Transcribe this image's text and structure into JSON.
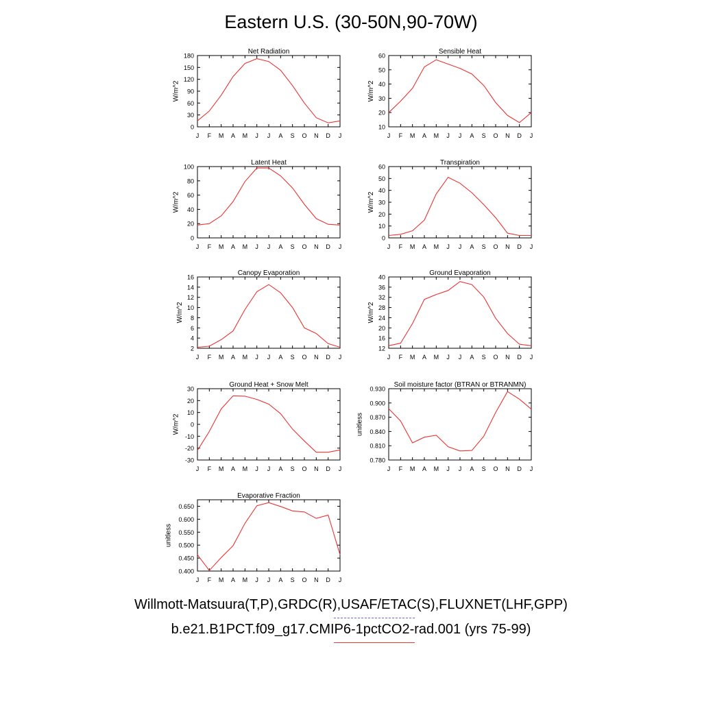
{
  "title": "Eastern U.S. (30-50N,90-70W)",
  "legend": {
    "observations": "Willmott-Matsuura(T,P),GRDC(R),USAF/ETAC(S),FLUXNET(LHF,GPP)",
    "model": "b.e21.B1PCT.f09_g17.CMIP6-1pctCO2-rad.001 (yrs 75-99)",
    "observations_color": "#6666ee",
    "model_color": "#ee3333"
  },
  "chart_data": [
    {
      "type": "line",
      "title": "Net Radiation",
      "ylabel": "W/m^2",
      "categories": [
        "J",
        "F",
        "M",
        "A",
        "M",
        "J",
        "J",
        "A",
        "S",
        "O",
        "N",
        "D",
        "J"
      ],
      "ylim": [
        0,
        180
      ],
      "yticks": [
        "0",
        "30",
        "60",
        "90",
        "120",
        "150",
        "180"
      ],
      "series": [
        {
          "values": [
            15,
            40,
            80,
            127,
            160,
            172,
            165,
            143,
            104,
            60,
            23,
            10,
            15
          ]
        }
      ]
    },
    {
      "type": "line",
      "title": "Sensible Heat",
      "ylabel": "W/m^2",
      "categories": [
        "J",
        "F",
        "M",
        "A",
        "M",
        "J",
        "J",
        "A",
        "S",
        "O",
        "N",
        "D",
        "J"
      ],
      "ylim": [
        10,
        60
      ],
      "yticks": [
        "10",
        "20",
        "30",
        "40",
        "50",
        "60"
      ],
      "series": [
        {
          "values": [
            20,
            28,
            37,
            52,
            57,
            54,
            51,
            47,
            39,
            27,
            18,
            13,
            20
          ]
        }
      ]
    },
    {
      "type": "line",
      "title": "Latent Heat",
      "ylabel": "W/m^2",
      "categories": [
        "J",
        "F",
        "M",
        "A",
        "M",
        "J",
        "J",
        "A",
        "S",
        "O",
        "N",
        "D",
        "J"
      ],
      "ylim": [
        0,
        100
      ],
      "yticks": [
        "0",
        "20",
        "40",
        "60",
        "80",
        "100"
      ],
      "series": [
        {
          "values": [
            18,
            20,
            31,
            51,
            79,
            98,
            98,
            87,
            70,
            47,
            27,
            19,
            18
          ]
        }
      ]
    },
    {
      "type": "line",
      "title": "Transpiration",
      "ylabel": "W/m^2",
      "categories": [
        "J",
        "F",
        "M",
        "A",
        "M",
        "J",
        "J",
        "A",
        "S",
        "O",
        "N",
        "D",
        "J"
      ],
      "ylim": [
        0,
        60
      ],
      "yticks": [
        "0",
        "10",
        "20",
        "30",
        "40",
        "50",
        "60"
      ],
      "series": [
        {
          "values": [
            2,
            3,
            6,
            15,
            37,
            51,
            46,
            38,
            28,
            17,
            4,
            2,
            2
          ]
        }
      ]
    },
    {
      "type": "line",
      "title": "Canopy Evaporation",
      "ylabel": "W/m^2",
      "categories": [
        "J",
        "F",
        "M",
        "A",
        "M",
        "J",
        "J",
        "A",
        "S",
        "O",
        "N",
        "D",
        "J"
      ],
      "ylim": [
        2,
        16
      ],
      "yticks": [
        "2",
        "4",
        "6",
        "8",
        "10",
        "12",
        "14",
        "16"
      ],
      "series": [
        {
          "values": [
            2.2,
            2.4,
            3.7,
            5.4,
            9.6,
            13.1,
            14.5,
            12.9,
            10.0,
            6.0,
            4.9,
            2.9,
            2.2
          ]
        }
      ]
    },
    {
      "type": "line",
      "title": "Ground Evaporation",
      "ylabel": "W/m^2",
      "categories": [
        "J",
        "F",
        "M",
        "A",
        "M",
        "J",
        "J",
        "A",
        "S",
        "O",
        "N",
        "D",
        "J"
      ],
      "ylim": [
        12,
        40
      ],
      "yticks": [
        "12",
        "16",
        "20",
        "24",
        "28",
        "32",
        "36",
        "40"
      ],
      "series": [
        {
          "values": [
            13,
            14,
            21.7,
            31.2,
            33.1,
            34.7,
            38.2,
            37,
            32.1,
            23.8,
            17.8,
            13.6,
            13
          ]
        }
      ]
    },
    {
      "type": "line",
      "title": "Ground Heat + Snow Melt",
      "ylabel": "W/m^2",
      "categories": [
        "J",
        "F",
        "M",
        "A",
        "M",
        "J",
        "J",
        "A",
        "S",
        "O",
        "N",
        "D",
        "J"
      ],
      "ylim": [
        -30,
        30
      ],
      "yticks": [
        "-30",
        "-20",
        "-10",
        "0",
        "10",
        "20",
        "30"
      ],
      "series": [
        {
          "values": [
            -22,
            -6,
            13,
            24,
            23.7,
            21,
            17,
            9,
            -4,
            -14,
            -23.5,
            -23.5,
            -21.5
          ]
        }
      ]
    },
    {
      "type": "line",
      "title": "Soil moisture factor (BTRAN or BTRANMN)",
      "ylabel": "unitless",
      "categories": [
        "J",
        "F",
        "M",
        "A",
        "M",
        "J",
        "J",
        "A",
        "S",
        "O",
        "N",
        "D",
        "J"
      ],
      "ylim": [
        0.78,
        0.93
      ],
      "yticks": [
        "0.780",
        "0.810",
        "0.840",
        "0.870",
        "0.900",
        "0.930"
      ],
      "series": [
        {
          "values": [
            0.888,
            0.862,
            0.816,
            0.828,
            0.832,
            0.808,
            0.799,
            0.8,
            0.83,
            0.88,
            0.924,
            0.908,
            0.887
          ]
        }
      ]
    },
    {
      "type": "line",
      "title": "Evaporative Fraction",
      "ylabel": "unitless",
      "categories": [
        "J",
        "F",
        "M",
        "A",
        "M",
        "J",
        "J",
        "A",
        "S",
        "O",
        "N",
        "D",
        "J"
      ],
      "ylim": [
        0.4,
        0.675
      ],
      "yticks": [
        "0.400",
        "0.450",
        "0.500",
        "0.550",
        "0.600",
        "0.650"
      ],
      "series": [
        {
          "values": [
            0.463,
            0.402,
            0.452,
            0.498,
            0.584,
            0.652,
            0.664,
            0.649,
            0.632,
            0.628,
            0.603,
            0.616,
            0.463
          ]
        }
      ]
    }
  ]
}
